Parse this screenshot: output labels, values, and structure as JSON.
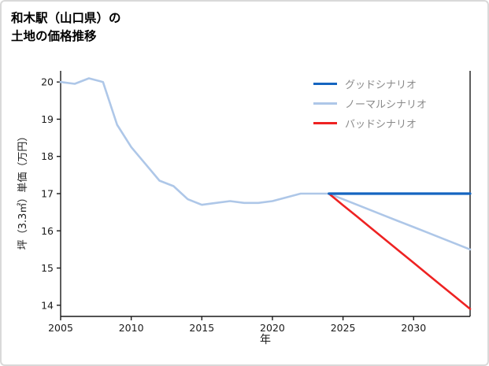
{
  "title": {
    "line1": "和木駅（山口県）の",
    "line2": "土地の価格推移"
  },
  "axes": {
    "x_label": "年",
    "y_label": "坪（3.3㎡）単価（万円）"
  },
  "legend": [
    {
      "label": "グッドシナリオ",
      "color": "#1565c0"
    },
    {
      "label": "ノーマルシナリオ",
      "color": "#aec7e8"
    },
    {
      "label": "バッドシナリオ",
      "color": "#ee2222"
    }
  ],
  "chart_data": {
    "type": "line",
    "title": "和木駅（山口県）の土地の価格推移",
    "xlabel": "年",
    "ylabel": "坪（3.3㎡）単価（万円）",
    "xlim": [
      2005,
      2034
    ],
    "ylim": [
      13.7,
      20.3
    ],
    "xticks": [
      2005,
      2010,
      2015,
      2020,
      2025,
      2030
    ],
    "yticks": [
      14,
      15,
      16,
      17,
      18,
      19,
      20
    ],
    "grid": false,
    "legend_position": "upper right",
    "series": [
      {
        "name": "ノーマルシナリオ",
        "color": "#aec7e8",
        "width": 2.6,
        "x": [
          2005,
          2006,
          2007,
          2008,
          2009,
          2010,
          2011,
          2012,
          2013,
          2014,
          2015,
          2016,
          2017,
          2018,
          2019,
          2020,
          2021,
          2022,
          2023,
          2024,
          2025,
          2026,
          2027,
          2028,
          2029,
          2030,
          2031,
          2032,
          2033,
          2034
        ],
        "values": [
          20.0,
          19.95,
          20.1,
          20.0,
          18.85,
          18.25,
          17.8,
          17.35,
          17.2,
          16.85,
          16.7,
          16.75,
          16.8,
          16.75,
          16.75,
          16.8,
          16.9,
          17.0,
          17.0,
          17.0,
          16.85,
          16.7,
          16.55,
          16.4,
          16.25,
          16.1,
          15.95,
          15.8,
          15.65,
          15.5
        ]
      },
      {
        "name": "バッドシナリオ",
        "color": "#ee2222",
        "width": 2.6,
        "x": [
          2024,
          2025,
          2026,
          2027,
          2028,
          2029,
          2030,
          2031,
          2032,
          2033,
          2034
        ],
        "values": [
          17.0,
          16.69,
          16.38,
          16.07,
          15.76,
          15.45,
          15.14,
          14.83,
          14.52,
          14.21,
          13.9
        ]
      },
      {
        "name": "グッドシナリオ",
        "color": "#1565c0",
        "width": 3.2,
        "x": [
          2024,
          2025,
          2026,
          2027,
          2028,
          2029,
          2030,
          2031,
          2032,
          2033,
          2034
        ],
        "values": [
          17.0,
          17.0,
          17.0,
          17.0,
          17.0,
          17.0,
          17.0,
          17.0,
          17.0,
          17.0,
          17.0
        ]
      }
    ]
  }
}
